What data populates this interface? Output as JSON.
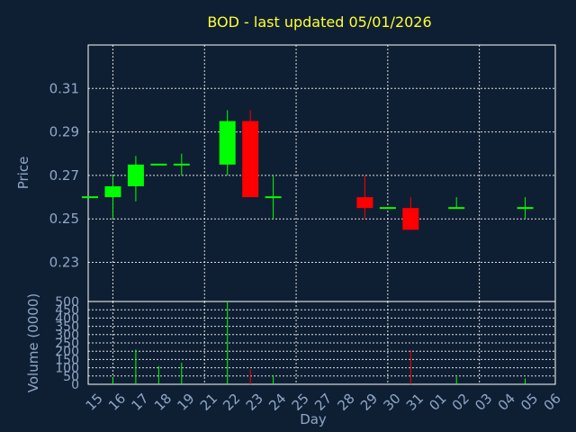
{
  "chart_data": {
    "type": "candlestick",
    "title": "BOD - last updated 05/01/2026",
    "xlabel": "Day",
    "ylabel": "Price",
    "volume_label": "Volume (0000)",
    "price_ylim": [
      0.212,
      0.33
    ],
    "price_ticks": [
      "0.31",
      "0.29",
      "0.27",
      "0.25",
      "0.23"
    ],
    "price_tick_values": [
      0.31,
      0.29,
      0.27,
      0.25,
      0.23
    ],
    "volume_ylim": [
      0,
      500
    ],
    "volume_ticks": [
      "500",
      "450",
      "400",
      "350",
      "300",
      "250",
      "200",
      "150",
      "100",
      "50",
      "0"
    ],
    "volume_tick_values": [
      500,
      450,
      400,
      350,
      300,
      250,
      200,
      150,
      100,
      50,
      0
    ],
    "days": [
      "15",
      "16",
      "17",
      "18",
      "19",
      "21",
      "22",
      "23",
      "24",
      "25",
      "27",
      "28",
      "29",
      "30",
      "31",
      "01",
      "02",
      "03",
      "04",
      "05",
      "06"
    ],
    "grid": true,
    "up_color": "#00ff00",
    "down_color": "#ff0000",
    "candles": [
      {
        "day": "15",
        "open": 0.26,
        "high": 0.26,
        "low": 0.26,
        "close": 0.26,
        "volume": 0
      },
      {
        "day": "16",
        "open": 0.26,
        "high": 0.27,
        "low": 0.25,
        "close": 0.265,
        "volume": 45
      },
      {
        "day": "17",
        "open": 0.265,
        "high": 0.279,
        "low": 0.258,
        "close": 0.275,
        "volume": 210
      },
      {
        "day": "18",
        "open": 0.275,
        "high": 0.275,
        "low": 0.275,
        "close": 0.275,
        "volume": 110
      },
      {
        "day": "19",
        "open": 0.275,
        "high": 0.28,
        "low": 0.27,
        "close": 0.275,
        "volume": 130
      },
      {
        "day": "22",
        "open": 0.275,
        "high": 0.3,
        "low": 0.27,
        "close": 0.295,
        "volume": 500
      },
      {
        "day": "23",
        "open": 0.295,
        "high": 0.3,
        "low": 0.26,
        "close": 0.26,
        "volume": 90
      },
      {
        "day": "24",
        "open": 0.26,
        "high": 0.27,
        "low": 0.25,
        "close": 0.26,
        "volume": 55
      },
      {
        "day": "29",
        "open": 0.26,
        "high": 0.27,
        "low": 0.25,
        "close": 0.255,
        "volume": 0
      },
      {
        "day": "30",
        "open": 0.255,
        "high": 0.255,
        "low": 0.255,
        "close": 0.255,
        "volume": 0
      },
      {
        "day": "31",
        "open": 0.255,
        "high": 0.26,
        "low": 0.245,
        "close": 0.245,
        "volume": 205
      },
      {
        "day": "02",
        "open": 0.255,
        "high": 0.26,
        "low": 0.255,
        "close": 0.255,
        "volume": 45
      },
      {
        "day": "05",
        "open": 0.255,
        "high": 0.26,
        "low": 0.25,
        "close": 0.255,
        "volume": 35
      }
    ]
  }
}
